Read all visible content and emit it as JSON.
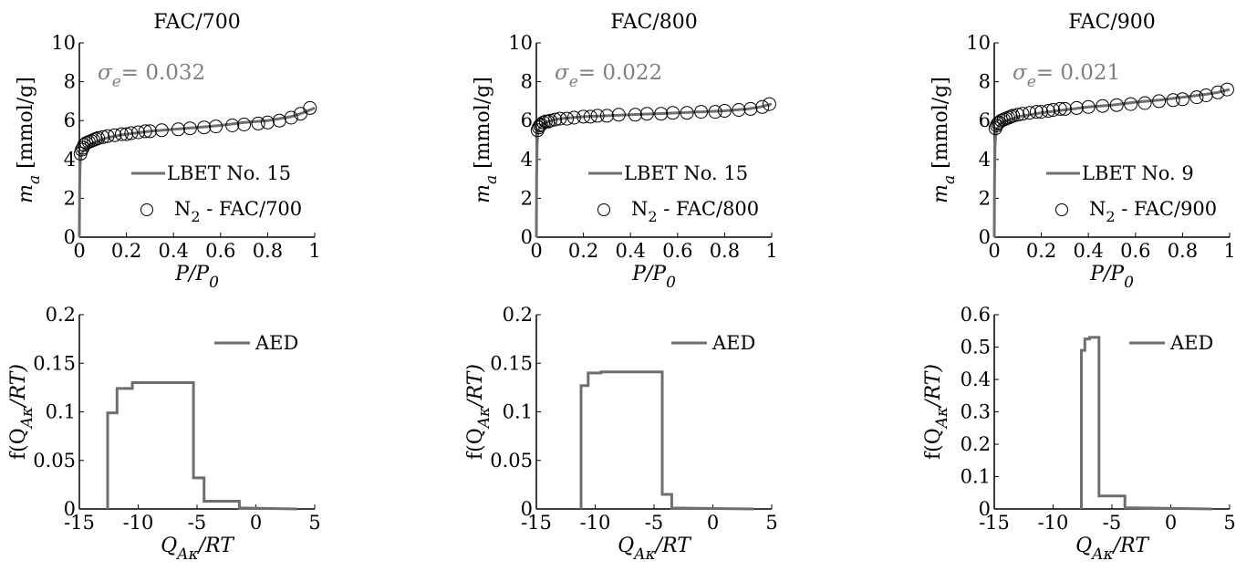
{
  "chart_data": [
    {
      "type": "line",
      "title": "FAC/700",
      "xlabel": {
        "main": "P/P",
        "sub": "0"
      },
      "ylabel": {
        "main": "m",
        "sub": "a",
        "unit": " [mmol/g]"
      },
      "xlim": [
        0,
        1
      ],
      "ylim": [
        0,
        10
      ],
      "xticks": [
        0,
        0.2,
        0.4,
        0.6,
        0.8,
        1
      ],
      "xtick_labels": [
        "0",
        "0.2",
        "0.4",
        "0.6",
        "0.8",
        "1"
      ],
      "yticks": [
        0,
        2,
        4,
        6,
        8,
        10
      ],
      "ytick_labels": [
        "0",
        "2",
        "4",
        "6",
        "8",
        "10"
      ],
      "annotation": {
        "symbol": "σ",
        "sub": "e",
        "text": "= 0.032",
        "color": "#808080"
      },
      "legend": [
        "LBET No. 15",
        "N",
        "2",
        " - FAC/700"
      ],
      "line_series": {
        "name": "LBET No. 15",
        "x": [
          0,
          0.001,
          0.003,
          0.006,
          0.01,
          0.015,
          0.02,
          0.03,
          0.05,
          0.08,
          0.1,
          0.15,
          0.2,
          0.3,
          0.4,
          0.5,
          0.6,
          0.7,
          0.8,
          0.9,
          0.95,
          1.0
        ],
        "y": [
          0,
          2.6,
          3.7,
          4.1,
          4.3,
          4.4,
          4.5,
          4.65,
          4.8,
          4.95,
          5.05,
          5.2,
          5.3,
          5.45,
          5.55,
          5.65,
          5.75,
          5.9,
          6.0,
          6.2,
          6.4,
          6.65
        ]
      },
      "marker_series": {
        "name": "N2 - FAC/700",
        "x": [
          0.005,
          0.01,
          0.015,
          0.02,
          0.03,
          0.04,
          0.05,
          0.06,
          0.07,
          0.08,
          0.1,
          0.12,
          0.15,
          0.18,
          0.2,
          0.22,
          0.25,
          0.28,
          0.3,
          0.35,
          0.42,
          0.47,
          0.53,
          0.58,
          0.65,
          0.7,
          0.76,
          0.8,
          0.85,
          0.9,
          0.94,
          0.98
        ],
        "y": [
          4.3,
          4.5,
          4.6,
          4.75,
          4.85,
          4.9,
          4.95,
          5.0,
          5.05,
          5.1,
          5.15,
          5.2,
          5.25,
          5.3,
          5.3,
          5.35,
          5.4,
          5.45,
          5.45,
          5.5,
          5.55,
          5.6,
          5.65,
          5.7,
          5.75,
          5.8,
          5.85,
          5.9,
          6.0,
          6.15,
          6.35,
          6.65
        ]
      }
    },
    {
      "type": "line",
      "title": "FAC/800",
      "xlabel": {
        "main": "P/P",
        "sub": "0"
      },
      "ylabel": {
        "main": "m",
        "sub": "a",
        "unit": " [mmol/g]"
      },
      "xlim": [
        0,
        1
      ],
      "ylim": [
        0,
        10
      ],
      "xticks": [
        0,
        0.2,
        0.4,
        0.6,
        0.8,
        1
      ],
      "xtick_labels": [
        "0",
        "0.2",
        "0.4",
        "0.6",
        "0.8",
        "1"
      ],
      "yticks": [
        0,
        2,
        4,
        6,
        8,
        10
      ],
      "ytick_labels": [
        "0",
        "2",
        "4",
        "6",
        "8",
        "10"
      ],
      "annotation": {
        "symbol": "σ",
        "sub": "e",
        "text": "= 0.022",
        "color": "#808080"
      },
      "legend": [
        "LBET No. 15",
        "N",
        "2",
        " - FAC/800"
      ],
      "line_series": {
        "name": "LBET No. 15",
        "x": [
          0,
          0.001,
          0.003,
          0.006,
          0.01,
          0.02,
          0.03,
          0.05,
          0.08,
          0.1,
          0.15,
          0.2,
          0.3,
          0.4,
          0.5,
          0.6,
          0.7,
          0.8,
          0.9,
          0.95,
          1.0
        ],
        "y": [
          0,
          3.2,
          4.8,
          5.3,
          5.55,
          5.75,
          5.85,
          5.95,
          6.05,
          6.1,
          6.15,
          6.2,
          6.25,
          6.3,
          6.35,
          6.4,
          6.45,
          6.5,
          6.6,
          6.7,
          6.85
        ]
      },
      "marker_series": {
        "name": "N2 - FAC/800",
        "x": [
          0.005,
          0.01,
          0.015,
          0.02,
          0.03,
          0.04,
          0.05,
          0.06,
          0.08,
          0.1,
          0.13,
          0.16,
          0.2,
          0.23,
          0.26,
          0.3,
          0.35,
          0.42,
          0.47,
          0.53,
          0.58,
          0.64,
          0.7,
          0.76,
          0.8,
          0.86,
          0.91,
          0.96,
          0.99
        ],
        "y": [
          5.5,
          5.65,
          5.75,
          5.8,
          5.9,
          5.95,
          5.95,
          6.0,
          6.05,
          6.1,
          6.1,
          6.15,
          6.2,
          6.2,
          6.25,
          6.25,
          6.3,
          6.3,
          6.35,
          6.35,
          6.4,
          6.4,
          6.45,
          6.45,
          6.5,
          6.55,
          6.6,
          6.7,
          6.85
        ]
      }
    },
    {
      "type": "line",
      "title": "FAC/900",
      "xlabel": {
        "main": "P/P",
        "sub": "0"
      },
      "ylabel": {
        "main": "m",
        "sub": "a",
        "unit": " [mmol/g]"
      },
      "xlim": [
        0,
        1
      ],
      "ylim": [
        0,
        10
      ],
      "xticks": [
        0,
        0.2,
        0.4,
        0.6,
        0.8,
        1
      ],
      "xtick_labels": [
        "0",
        "0.2",
        "0.4",
        "0.6",
        "0.8",
        "1"
      ],
      "yticks": [
        0,
        2,
        4,
        6,
        8,
        10
      ],
      "ytick_labels": [
        "0",
        "2",
        "4",
        "6",
        "8",
        "10"
      ],
      "annotation": {
        "symbol": "σ",
        "sub": "e",
        "text": "= 0.021",
        "color": "#808080"
      },
      "legend": [
        "LBET No. 9",
        "N",
        "2",
        " - FAC/900"
      ],
      "line_series": {
        "name": "LBET No. 9",
        "x": [
          0,
          0.001,
          0.003,
          0.006,
          0.01,
          0.02,
          0.03,
          0.05,
          0.08,
          0.1,
          0.15,
          0.2,
          0.3,
          0.4,
          0.5,
          0.6,
          0.7,
          0.8,
          0.9,
          0.95,
          1.0
        ],
        "y": [
          0,
          3.0,
          4.7,
          5.2,
          5.5,
          5.75,
          5.85,
          6.0,
          6.1,
          6.2,
          6.3,
          6.4,
          6.55,
          6.7,
          6.8,
          6.95,
          7.05,
          7.2,
          7.35,
          7.45,
          7.6
        ]
      },
      "marker_series": {
        "name": "N2 - FAC/900",
        "x": [
          0.005,
          0.01,
          0.015,
          0.02,
          0.03,
          0.04,
          0.05,
          0.06,
          0.07,
          0.08,
          0.1,
          0.12,
          0.15,
          0.18,
          0.2,
          0.23,
          0.25,
          0.28,
          0.3,
          0.35,
          0.4,
          0.46,
          0.52,
          0.58,
          0.64,
          0.7,
          0.76,
          0.8,
          0.86,
          0.9,
          0.95,
          0.99
        ],
        "y": [
          5.6,
          5.75,
          5.85,
          5.9,
          6.0,
          6.05,
          6.1,
          6.15,
          6.2,
          6.25,
          6.3,
          6.35,
          6.4,
          6.45,
          6.45,
          6.5,
          6.55,
          6.6,
          6.6,
          6.65,
          6.7,
          6.75,
          6.8,
          6.85,
          6.9,
          7.0,
          7.05,
          7.1,
          7.2,
          7.3,
          7.45,
          7.6
        ]
      }
    },
    {
      "type": "line",
      "xlabel": {
        "main": "Q",
        "sub": "Aκ",
        "tail": "/RT"
      },
      "ylabel": {
        "main": "f(Q",
        "sub": "Aκ",
        "tail": "/RT)"
      },
      "xlim": [
        -15,
        5
      ],
      "ylim": [
        0,
        0.2
      ],
      "xticks": [
        -15,
        -10,
        -5,
        0,
        5
      ],
      "xtick_labels": [
        "-15",
        "-10",
        "-5",
        "0",
        "5"
      ],
      "yticks": [
        0,
        0.05,
        0.1,
        0.15,
        0.2
      ],
      "ytick_labels": [
        "0",
        "0.05",
        "0.1",
        "0.15",
        "0.2"
      ],
      "legend": [
        "AED"
      ],
      "series": [
        {
          "name": "AED",
          "x": [
            -12.6,
            -12.6,
            -11.8,
            -11.8,
            -10.5,
            -10.5,
            -5.3,
            -5.3,
            -4.4,
            -4.4,
            -1.4,
            -1.4,
            3.5
          ],
          "y": [
            0,
            0.099,
            0.099,
            0.124,
            0.124,
            0.13,
            0.13,
            0.032,
            0.032,
            0.008,
            0.008,
            0.001,
            0.0
          ]
        }
      ]
    },
    {
      "type": "line",
      "xlabel": {
        "main": "Q",
        "sub": "Aκ",
        "tail": "/RT"
      },
      "ylabel": {
        "main": "f(Q",
        "sub": "Aκ",
        "tail": "/RT)"
      },
      "xlim": [
        -15,
        5
      ],
      "ylim": [
        0,
        0.2
      ],
      "xticks": [
        -15,
        -10,
        -5,
        0,
        5
      ],
      "xtick_labels": [
        "-15",
        "-10",
        "-5",
        "0",
        "5"
      ],
      "yticks": [
        0,
        0.05,
        0.1,
        0.15,
        0.2
      ],
      "ytick_labels": [
        "0",
        "0.05",
        "0.1",
        "0.15",
        "0.2"
      ],
      "legend": [
        "AED"
      ],
      "series": [
        {
          "name": "AED",
          "x": [
            -11.2,
            -11.2,
            -10.6,
            -10.6,
            -9.5,
            -9.5,
            -8.3,
            -8.3,
            -4.3,
            -4.3,
            -3.5,
            -3.5,
            3.5
          ],
          "y": [
            0,
            0.127,
            0.127,
            0.14,
            0.14,
            0.141,
            0.141,
            0.141,
            0.141,
            0.015,
            0.015,
            0.001,
            0.0
          ]
        }
      ]
    },
    {
      "type": "line",
      "xlabel": {
        "main": "Q",
        "sub": "Aκ",
        "tail": "/RT"
      },
      "ylabel": {
        "main": "f(Q",
        "sub": "Aκ",
        "tail": "/RT)"
      },
      "xlim": [
        -15,
        5
      ],
      "ylim": [
        0,
        0.6
      ],
      "xticks": [
        -15,
        -10,
        -5,
        0,
        5
      ],
      "xtick_labels": [
        "-15",
        "-10",
        "-5",
        "0",
        "5"
      ],
      "yticks": [
        0,
        0.1,
        0.2,
        0.3,
        0.4,
        0.5,
        0.6
      ],
      "ytick_labels": [
        "0",
        "0.1",
        "0.2",
        "0.3",
        "0.4",
        "0.5",
        "0.6"
      ],
      "legend": [
        "AED"
      ],
      "series": [
        {
          "name": "AED",
          "x": [
            -7.6,
            -7.6,
            -7.3,
            -7.3,
            -6.9,
            -6.9,
            -6.1,
            -6.1,
            -3.9,
            -3.9,
            3.5
          ],
          "y": [
            0,
            0.49,
            0.49,
            0.525,
            0.525,
            0.53,
            0.53,
            0.04,
            0.04,
            0.004,
            0.0
          ]
        }
      ]
    }
  ]
}
